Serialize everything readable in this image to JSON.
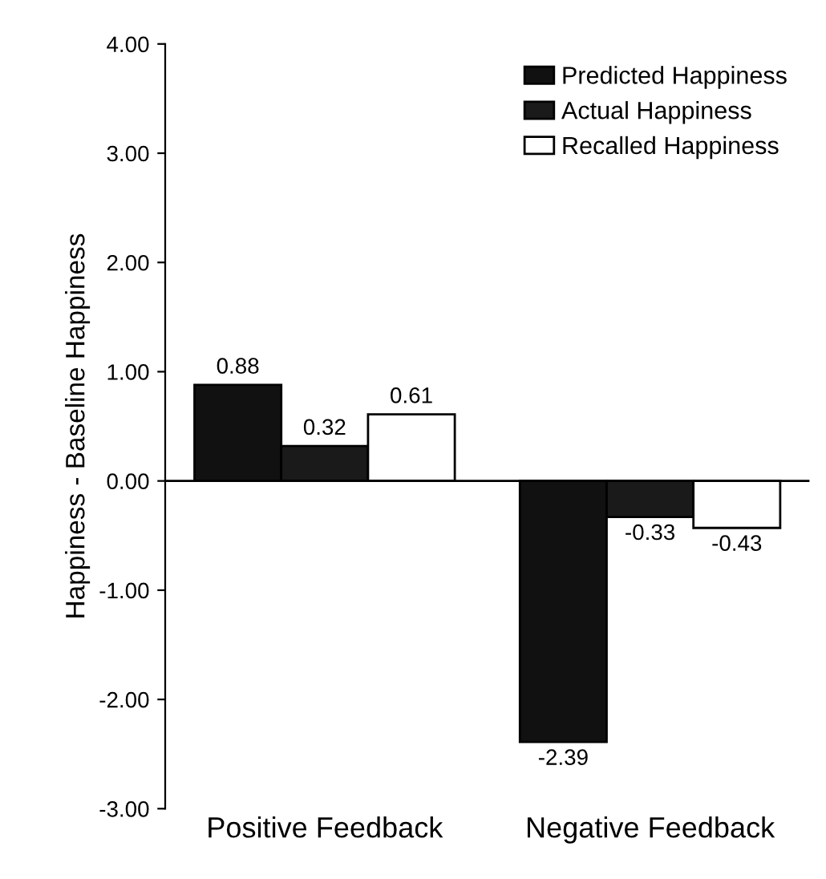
{
  "chart_data": {
    "type": "bar",
    "ylabel": "Happiness - Baseline Happiness",
    "categories": [
      "Positive Feedback",
      "Negative Feedback"
    ],
    "series": [
      {
        "name": "Predicted Happiness",
        "color": "#111111",
        "values": [
          0.88,
          -2.39
        ]
      },
      {
        "name": "Actual Happiness",
        "color": "#1a1a1a",
        "values": [
          0.32,
          -0.33
        ]
      },
      {
        "name": "Recalled Happiness",
        "color": "#ffffff",
        "values": [
          0.61,
          -0.43
        ]
      }
    ],
    "ylim": [
      -3,
      4
    ],
    "yticks": [
      {
        "value": 4,
        "label": "4.00"
      },
      {
        "value": 3,
        "label": "3.00"
      },
      {
        "value": 2,
        "label": "2.00"
      },
      {
        "value": 1,
        "label": "1.00"
      },
      {
        "value": 0,
        "label": "0.00"
      },
      {
        "value": -1,
        "label": "-1.00"
      },
      {
        "value": -2,
        "label": "-2.00"
      },
      {
        "value": -3,
        "label": "-3.00"
      }
    ],
    "ref_lines": [
      {
        "axis": "y",
        "value": 0,
        "color": "#000000"
      }
    ],
    "data_labels": true,
    "legend": "top right",
    "grid": false
  }
}
